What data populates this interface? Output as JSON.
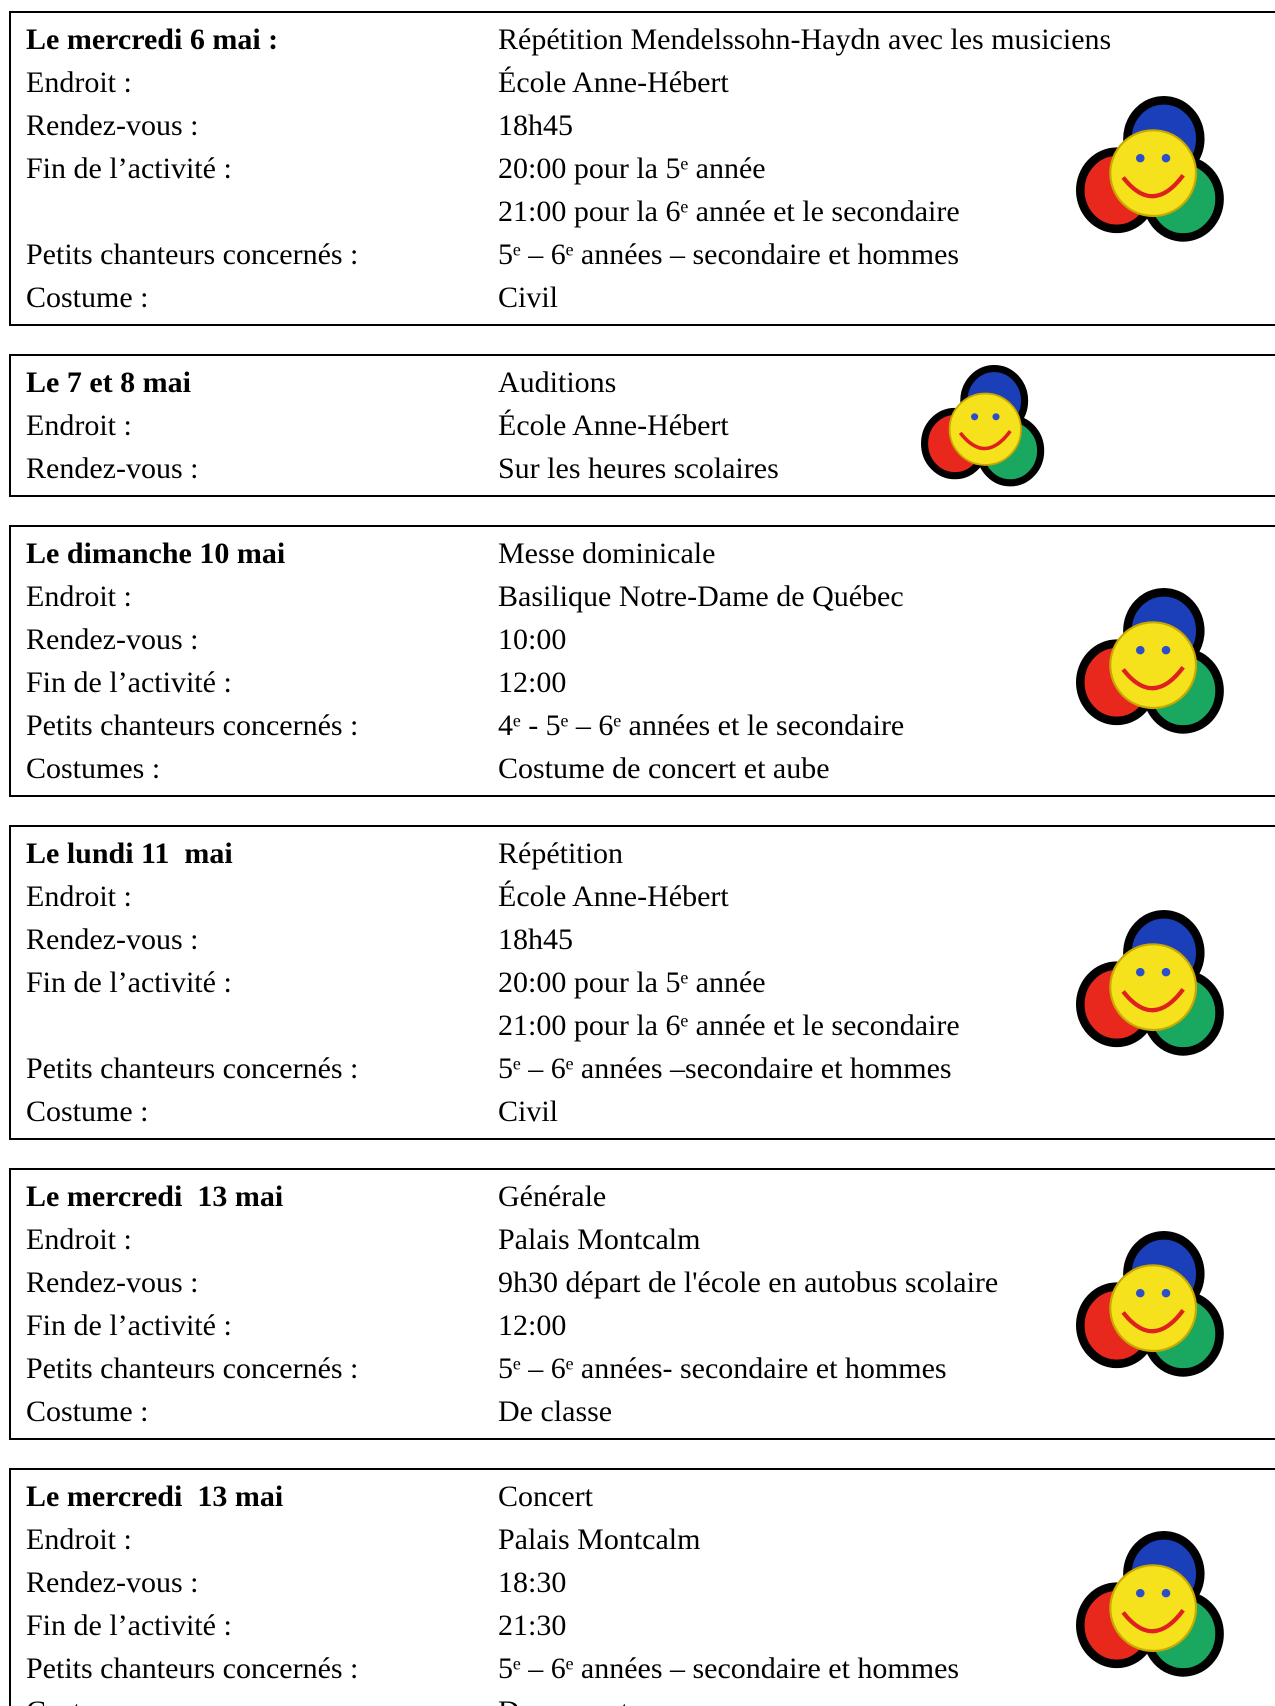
{
  "events": [
    {
      "rows": [
        {
          "label": "Le mercredi 6 mai :",
          "value": "Répétition Mendelssohn-Haydn avec les musiciens"
        },
        {
          "label": "Endroit :",
          "value": "École Anne-Hébert"
        },
        {
          "label": "Rendez-vous :",
          "value": "18h45"
        },
        {
          "label": "Fin de l’activité :",
          "value": "20:00 pour la 5ᵉ année"
        },
        {
          "value": "21:00 pour la 6ᵉ année et le secondaire"
        },
        {
          "label": "Petits chanteurs concernés :",
          "value": "5ᵉ – 6ᵉ années – secondaire et hommes"
        },
        {
          "label": "Costume :",
          "value": "Civil"
        }
      ]
    },
    {
      "rows": [
        {
          "label": "Le 7 et 8 mai",
          "value": "Auditions"
        },
        {
          "label": "Endroit :",
          "value": "École Anne-Hébert"
        },
        {
          "label": "Rendez-vous :",
          "value": "Sur les heures scolaires"
        }
      ]
    },
    {
      "rows": [
        {
          "label": "Le dimanche 10 mai",
          "value": "Messe dominicale"
        },
        {
          "label": "Endroit :",
          "value": "Basilique Notre-Dame de Québec"
        },
        {
          "label": "Rendez-vous :",
          "value": "10:00"
        },
        {
          "label": "Fin de l’activité :",
          "value": "12:00"
        },
        {
          "label": "Petits chanteurs concernés :",
          "value": "4ᵉ - 5ᵉ – 6ᵉ années et le secondaire"
        },
        {
          "label": "Costumes :",
          "value": "Costume de concert et aube"
        }
      ]
    },
    {
      "rows": [
        {
          "label": "Le lundi 11  mai",
          "value": "Répétition"
        },
        {
          "label": "Endroit :",
          "value": "École Anne-Hébert"
        },
        {
          "label": "Rendez-vous :",
          "value": "18h45"
        },
        {
          "label": "Fin de l’activité :",
          "value": "20:00 pour la 5ᵉ année"
        },
        {
          "value": "21:00 pour la 6ᵉ année et le secondaire"
        },
        {
          "label": "Petits chanteurs concernés :",
          "value": "5ᵉ – 6ᵉ années –secondaire et hommes"
        },
        {
          "label": "Costume :",
          "value": "Civil"
        }
      ]
    },
    {
      "rows": [
        {
          "label": "Le mercredi  13 mai",
          "value": "Générale"
        },
        {
          "label": "Endroit :",
          "value": "Palais Montcalm"
        },
        {
          "label": "Rendez-vous :",
          "value": "9h30 départ de l'école en autobus scolaire"
        },
        {
          "label": "Fin de l’activité :",
          "value": "12:00"
        },
        {
          "label": "Petits chanteurs concernés :",
          "value": "5ᵉ – 6ᵉ années- secondaire et hommes"
        },
        {
          "label": "Costume :",
          "value": "De classe"
        }
      ]
    },
    {
      "rows": [
        {
          "label": "Le mercredi  13 mai",
          "value": "Concert"
        },
        {
          "label": "Endroit :",
          "value": "Palais Montcalm"
        },
        {
          "label": "Rendez-vous :",
          "value": "18:30"
        },
        {
          "label": "Fin de l’activité :",
          "value": "21:30"
        },
        {
          "label": "Petits chanteurs concernés :",
          "value": "5ᵉ – 6ᵉ années – secondaire et hommes"
        },
        {
          "label": "Costume :",
          "value": "De concert"
        }
      ]
    }
  ]
}
